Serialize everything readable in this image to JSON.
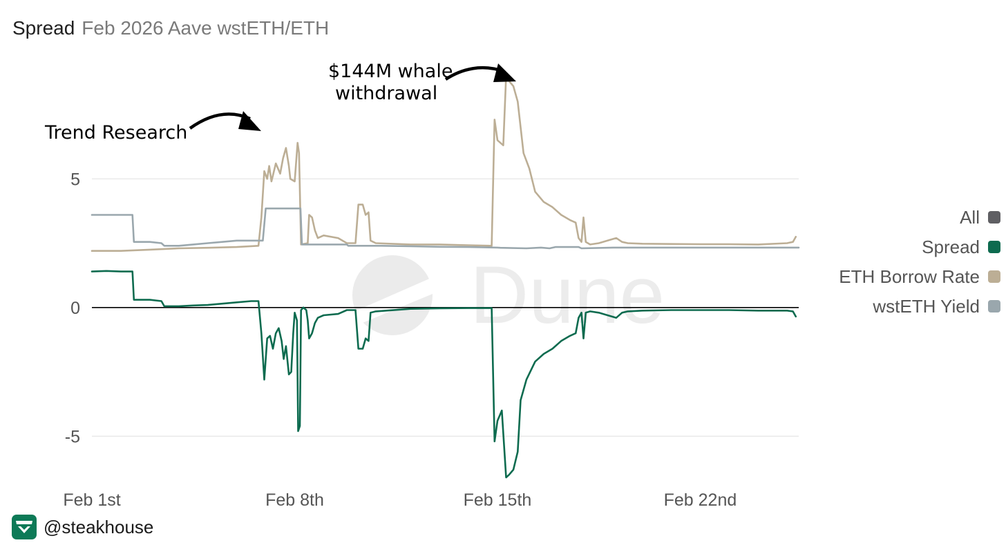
{
  "header": {
    "title": "Spread",
    "subtitle": "Feb 2026 Aave wstETH/ETH"
  },
  "legend": {
    "items": [
      {
        "label": "All",
        "color": "#5f5f63"
      },
      {
        "label": "Spread",
        "color": "#0d6b4f"
      },
      {
        "label": "ETH Borrow Rate",
        "color": "#bcae95"
      },
      {
        "label": "wstETH Yield",
        "color": "#9aa7ad"
      }
    ]
  },
  "watermark": {
    "text": "Dune"
  },
  "annotations": {
    "trend": "Trend Research",
    "whale_line1": "$144M whale",
    "whale_line2": "withdrawal"
  },
  "footer": {
    "handle": "@steakhouse",
    "icon": "steakhouse-logo-icon"
  },
  "chart_data": {
    "type": "line",
    "xlim": [
      1,
      25.4
    ],
    "ylim": [
      -7,
      9
    ],
    "y_ticks": [
      5,
      0,
      -5
    ],
    "x_ticks": [
      {
        "value": 1,
        "label": "Feb 1st"
      },
      {
        "value": 8,
        "label": "Feb 8th"
      },
      {
        "value": 15,
        "label": "Feb 15th"
      },
      {
        "value": 22,
        "label": "Feb 22nd"
      }
    ],
    "grid": true,
    "legend_position": "right",
    "series": [
      {
        "name": "ETH Borrow Rate",
        "color": "#bcae95",
        "points": [
          [
            1,
            2.2
          ],
          [
            2,
            2.2
          ],
          [
            3,
            2.25
          ],
          [
            4,
            2.3
          ],
          [
            5,
            2.32
          ],
          [
            6,
            2.35
          ],
          [
            6.75,
            2.4
          ],
          [
            6.85,
            3.5
          ],
          [
            6.95,
            5.3
          ],
          [
            7.05,
            5.0
          ],
          [
            7.12,
            5.5
          ],
          [
            7.2,
            4.9
          ],
          [
            7.35,
            5.6
          ],
          [
            7.5,
            5.2
          ],
          [
            7.6,
            5.8
          ],
          [
            7.7,
            6.2
          ],
          [
            7.8,
            5.5
          ],
          [
            7.85,
            5.0
          ],
          [
            8.0,
            4.9
          ],
          [
            8.1,
            6.4
          ],
          [
            8.15,
            6.0
          ],
          [
            8.22,
            2.45
          ],
          [
            8.45,
            2.5
          ],
          [
            8.5,
            3.6
          ],
          [
            8.6,
            3.5
          ],
          [
            8.7,
            3.0
          ],
          [
            8.8,
            2.7
          ],
          [
            9.0,
            2.8
          ],
          [
            9.5,
            2.7
          ],
          [
            9.8,
            2.5
          ],
          [
            10.1,
            2.5
          ],
          [
            10.2,
            4.0
          ],
          [
            10.35,
            4.0
          ],
          [
            10.45,
            3.6
          ],
          [
            10.55,
            3.7
          ],
          [
            10.62,
            2.6
          ],
          [
            10.8,
            2.5
          ],
          [
            12,
            2.45
          ],
          [
            13,
            2.45
          ],
          [
            14,
            2.42
          ],
          [
            14.8,
            2.4
          ],
          [
            14.9,
            7.3
          ],
          [
            15.0,
            6.5
          ],
          [
            15.2,
            6.3
          ],
          [
            15.3,
            9.0
          ],
          [
            15.4,
            8.8
          ],
          [
            15.55,
            8.6
          ],
          [
            15.7,
            8.0
          ],
          [
            15.9,
            6.0
          ],
          [
            16.1,
            5.4
          ],
          [
            16.3,
            4.5
          ],
          [
            16.6,
            4.1
          ],
          [
            16.9,
            3.9
          ],
          [
            17.2,
            3.6
          ],
          [
            17.5,
            3.4
          ],
          [
            17.7,
            3.3
          ],
          [
            17.8,
            2.7
          ],
          [
            17.9,
            2.55
          ],
          [
            17.97,
            3.5
          ],
          [
            18.05,
            2.55
          ],
          [
            18.2,
            2.45
          ],
          [
            18.5,
            2.5
          ],
          [
            18.8,
            2.6
          ],
          [
            19.1,
            2.7
          ],
          [
            19.3,
            2.55
          ],
          [
            19.5,
            2.5
          ],
          [
            20,
            2.48
          ],
          [
            21,
            2.47
          ],
          [
            22,
            2.46
          ],
          [
            23,
            2.46
          ],
          [
            24,
            2.45
          ],
          [
            25,
            2.5
          ],
          [
            25.2,
            2.55
          ],
          [
            25.3,
            2.75
          ]
        ]
      },
      {
        "name": "wstETH Yield",
        "color": "#9aa7ad",
        "points": [
          [
            1,
            3.6
          ],
          [
            2,
            3.6
          ],
          [
            2.4,
            3.6
          ],
          [
            2.45,
            2.55
          ],
          [
            3.0,
            2.55
          ],
          [
            3.4,
            2.5
          ],
          [
            3.5,
            2.4
          ],
          [
            4.0,
            2.4
          ],
          [
            4.5,
            2.45
          ],
          [
            5.0,
            2.5
          ],
          [
            5.5,
            2.55
          ],
          [
            6.0,
            2.6
          ],
          [
            6.5,
            2.6
          ],
          [
            6.6,
            2.6
          ],
          [
            6.9,
            2.6
          ],
          [
            7.0,
            3.85
          ],
          [
            7.5,
            3.85
          ],
          [
            8.0,
            3.85
          ],
          [
            8.2,
            3.85
          ],
          [
            8.25,
            2.45
          ],
          [
            9.0,
            2.45
          ],
          [
            9.8,
            2.45
          ],
          [
            9.85,
            2.4
          ],
          [
            11.0,
            2.4
          ],
          [
            12.0,
            2.38
          ],
          [
            13.0,
            2.36
          ],
          [
            14.0,
            2.35
          ],
          [
            15.0,
            2.33
          ],
          [
            15.1,
            2.32
          ],
          [
            16.0,
            2.3
          ],
          [
            16.5,
            2.33
          ],
          [
            16.8,
            2.3
          ],
          [
            17.0,
            2.35
          ],
          [
            17.8,
            2.35
          ],
          [
            17.9,
            2.3
          ],
          [
            19.0,
            2.33
          ],
          [
            20.0,
            2.33
          ],
          [
            21.0,
            2.33
          ],
          [
            22.0,
            2.33
          ],
          [
            23.0,
            2.33
          ],
          [
            24.0,
            2.33
          ],
          [
            25.0,
            2.33
          ],
          [
            25.4,
            2.33
          ]
        ]
      },
      {
        "name": "Spread",
        "color": "#0d6b4f",
        "points": [
          [
            1,
            1.4
          ],
          [
            1.5,
            1.42
          ],
          [
            2,
            1.4
          ],
          [
            2.4,
            1.4
          ],
          [
            2.45,
            0.3
          ],
          [
            3.0,
            0.3
          ],
          [
            3.4,
            0.25
          ],
          [
            3.5,
            0.05
          ],
          [
            4.0,
            0.05
          ],
          [
            4.5,
            0.08
          ],
          [
            5.0,
            0.1
          ],
          [
            5.5,
            0.15
          ],
          [
            6.0,
            0.2
          ],
          [
            6.5,
            0.25
          ],
          [
            6.75,
            0.25
          ],
          [
            6.85,
            -1.0
          ],
          [
            6.95,
            -2.8
          ],
          [
            7.05,
            -1.2
          ],
          [
            7.15,
            -1.1
          ],
          [
            7.25,
            -1.6
          ],
          [
            7.35,
            -1.0
          ],
          [
            7.45,
            -0.8
          ],
          [
            7.55,
            -1.3
          ],
          [
            7.62,
            -2.0
          ],
          [
            7.7,
            -1.5
          ],
          [
            7.8,
            -2.6
          ],
          [
            7.88,
            -2.5
          ],
          [
            7.95,
            -1.0
          ],
          [
            8.0,
            -0.2
          ],
          [
            8.08,
            -0.5
          ],
          [
            8.12,
            -4.8
          ],
          [
            8.18,
            -4.6
          ],
          [
            8.22,
            -0.1
          ],
          [
            8.3,
            0.0
          ],
          [
            8.4,
            -0.1
          ],
          [
            8.45,
            -0.5
          ],
          [
            8.5,
            -1.2
          ],
          [
            8.6,
            -1.0
          ],
          [
            8.7,
            -0.6
          ],
          [
            8.8,
            -0.4
          ],
          [
            9.0,
            -0.3
          ],
          [
            9.5,
            -0.25
          ],
          [
            9.8,
            -0.1
          ],
          [
            10.1,
            -0.1
          ],
          [
            10.2,
            -1.6
          ],
          [
            10.35,
            -1.6
          ],
          [
            10.45,
            -1.2
          ],
          [
            10.55,
            -1.3
          ],
          [
            10.62,
            -0.2
          ],
          [
            10.8,
            -0.15
          ],
          [
            12,
            -0.05
          ],
          [
            13,
            -0.03
          ],
          [
            14,
            -0.02
          ],
          [
            14.8,
            -0.02
          ],
          [
            14.9,
            -5.2
          ],
          [
            15.0,
            -4.4
          ],
          [
            15.15,
            -4.0
          ],
          [
            15.3,
            -6.6
          ],
          [
            15.4,
            -6.5
          ],
          [
            15.55,
            -6.3
          ],
          [
            15.7,
            -5.6
          ],
          [
            15.8,
            -3.6
          ],
          [
            16.0,
            -2.8
          ],
          [
            16.3,
            -2.1
          ],
          [
            16.6,
            -1.8
          ],
          [
            16.9,
            -1.6
          ],
          [
            17.2,
            -1.3
          ],
          [
            17.5,
            -1.1
          ],
          [
            17.7,
            -1.0
          ],
          [
            17.8,
            -0.4
          ],
          [
            17.9,
            -0.2
          ],
          [
            17.97,
            -1.2
          ],
          [
            18.05,
            -0.2
          ],
          [
            18.2,
            -0.15
          ],
          [
            18.5,
            -0.2
          ],
          [
            18.8,
            -0.3
          ],
          [
            19.1,
            -0.4
          ],
          [
            19.3,
            -0.2
          ],
          [
            19.5,
            -0.15
          ],
          [
            20,
            -0.12
          ],
          [
            21,
            -0.1
          ],
          [
            22,
            -0.1
          ],
          [
            23,
            -0.1
          ],
          [
            24,
            -0.12
          ],
          [
            25,
            -0.12
          ],
          [
            25.2,
            -0.15
          ],
          [
            25.3,
            -0.35
          ]
        ]
      }
    ]
  }
}
